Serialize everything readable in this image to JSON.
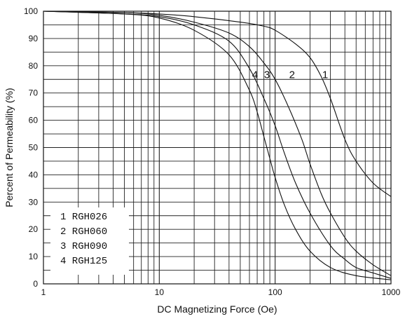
{
  "chart_data": {
    "type": "line",
    "xlabel": "DC Magnetizing Force (Oe)",
    "ylabel": "Percent of Permeability (%)",
    "xscale": "log",
    "xlim": [
      1,
      1000
    ],
    "ylim": [
      0,
      100
    ],
    "grid": true,
    "x_ticks": [
      "1",
      "10",
      "100",
      "1000"
    ],
    "y_ticks": [
      "0",
      "10",
      "20",
      "30",
      "40",
      "50",
      "60",
      "70",
      "80",
      "90",
      "100"
    ],
    "legend_position": "bottom-left",
    "legend": [
      "1 RGH026",
      "2 RGH060",
      "3 RGH090",
      "4 RGH125"
    ],
    "series": [
      {
        "name": "1 RGH026",
        "curve_label": "1",
        "x": [
          1,
          5,
          10,
          20,
          50,
          80,
          100,
          150,
          200,
          250,
          300,
          400,
          500,
          700,
          1000
        ],
        "y": [
          100,
          99.5,
          99,
          98,
          96,
          94.5,
          93,
          88,
          83,
          76,
          68,
          53,
          45,
          37,
          32
        ]
      },
      {
        "name": "2 RGH060",
        "curve_label": "2",
        "x": [
          1,
          5,
          10,
          20,
          40,
          60,
          80,
          100,
          130,
          170,
          200,
          250,
          300,
          400,
          500,
          700,
          1000
        ],
        "y": [
          100,
          99.5,
          98.5,
          96,
          92,
          87,
          81,
          75,
          65,
          53,
          44,
          33,
          26,
          17,
          12,
          7,
          3
        ]
      },
      {
        "name": "3 RGH090",
        "curve_label": "3",
        "x": [
          1,
          5,
          10,
          20,
          40,
          60,
          80,
          100,
          120,
          150,
          200,
          300,
          400,
          500,
          700,
          1000
        ],
        "y": [
          100,
          99,
          98,
          95,
          89,
          79,
          68,
          58,
          48,
          37,
          26,
          14,
          9,
          6,
          4,
          2
        ]
      },
      {
        "name": "4 RGH125",
        "curve_label": "4",
        "x": [
          1,
          5,
          10,
          20,
          40,
          60,
          70,
          80,
          90,
          100,
          120,
          150,
          200,
          300,
          500,
          1000
        ],
        "y": [
          100,
          99,
          97.5,
          93,
          84,
          71,
          63,
          54,
          46,
          39,
          29,
          20,
          12,
          6,
          3,
          1.5
        ]
      }
    ]
  }
}
